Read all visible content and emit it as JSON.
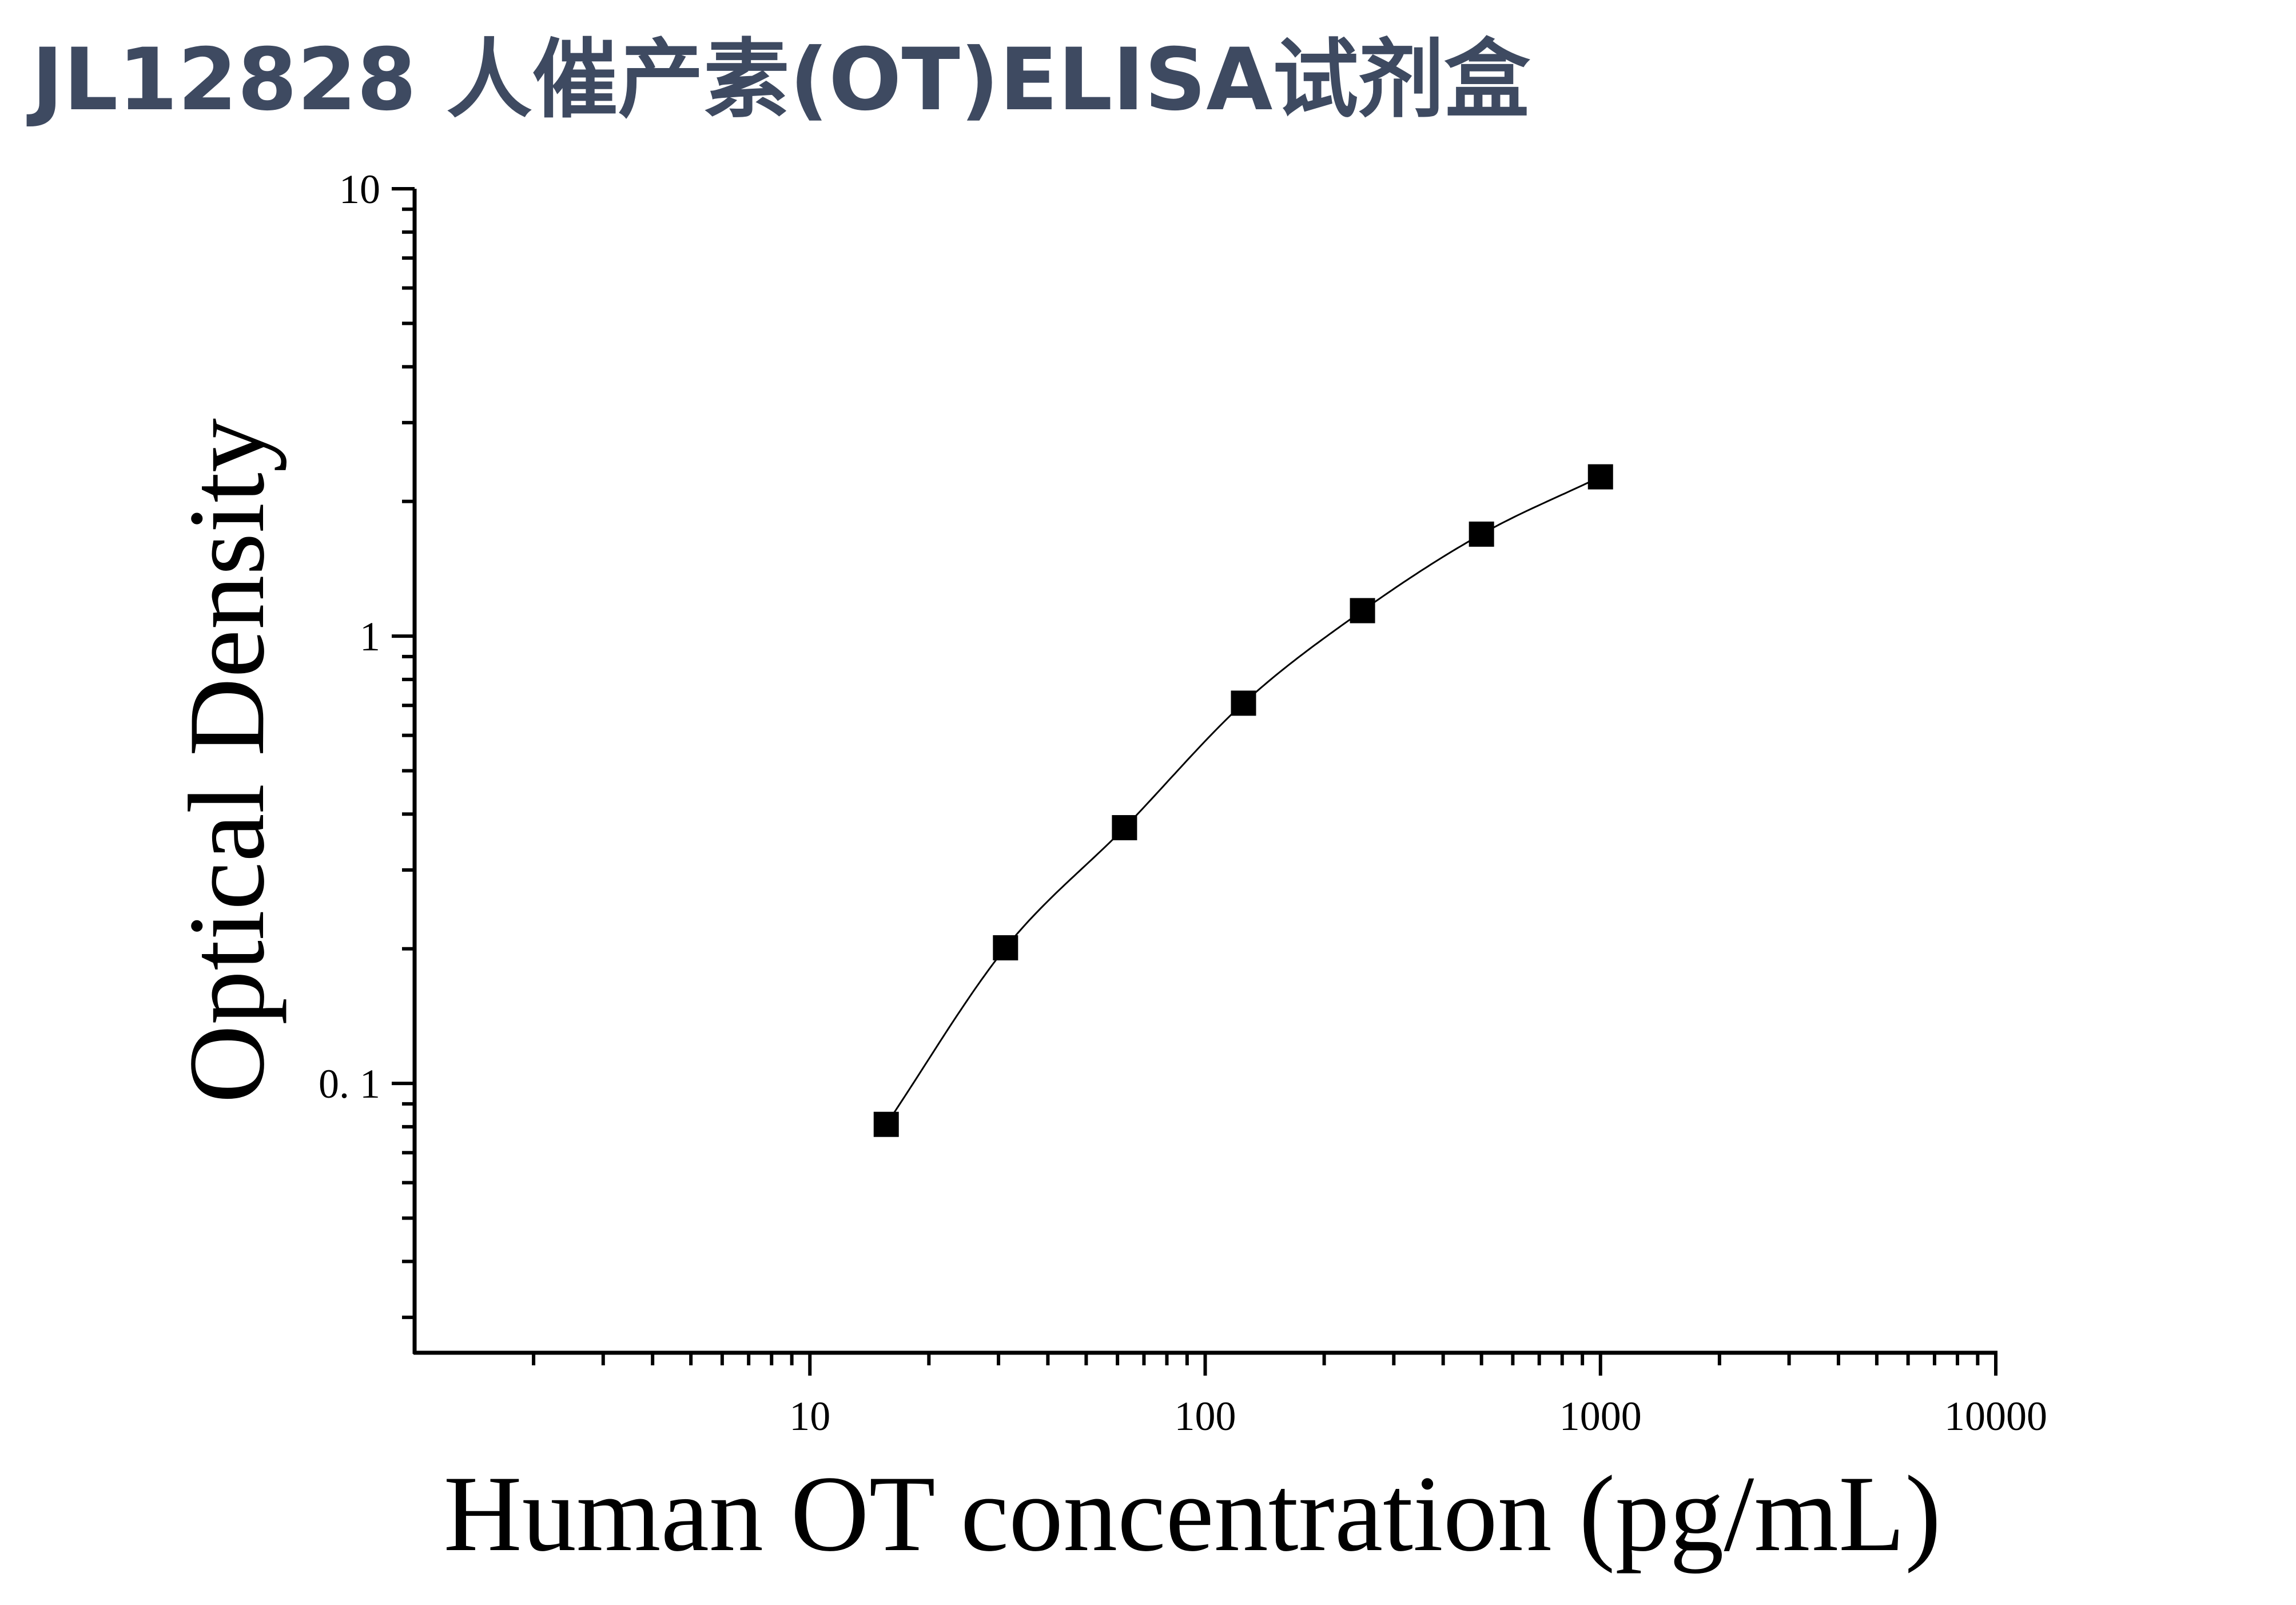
{
  "page": {
    "title": "JL12828 人催产素(OT)ELISA试剂盒",
    "title_color": "#3e4a61"
  },
  "chart_data": {
    "type": "scatter",
    "title": "",
    "xlabel": "Human OT concentration (pg/mL)",
    "ylabel": "Optical Density",
    "x_scale": "log",
    "y_scale": "log",
    "xlim": [
      1,
      10000
    ],
    "ylim": [
      0.025,
      10
    ],
    "x_tick_labels": [
      "10",
      "100",
      "1000",
      "10000"
    ],
    "y_tick_labels": [
      "0. 1",
      "1",
      "10"
    ],
    "grid": false,
    "legend": "none",
    "fit_line": "smooth curve through points",
    "marker": "square",
    "marker_color": "#000000",
    "series": [
      {
        "x": [
          15.6,
          31.25,
          62.5,
          125,
          250,
          500,
          1000
        ],
        "y": [
          0.081,
          0.201,
          0.373,
          0.708,
          1.14,
          1.69,
          2.27
        ]
      }
    ]
  }
}
